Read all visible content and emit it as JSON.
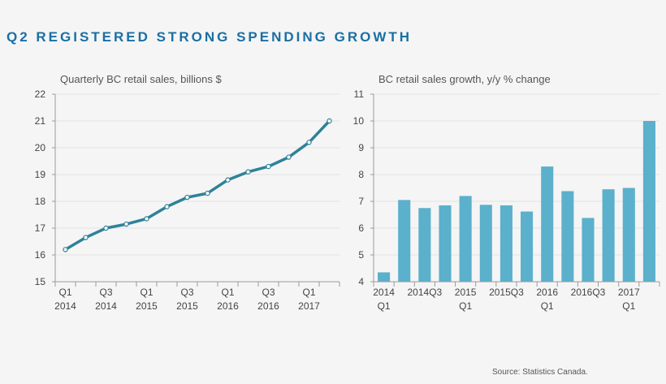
{
  "page": {
    "title": "Q2 REGISTERED STRONG SPENDING GROWTH",
    "source": "Source:  Statistics  Canada."
  },
  "colors": {
    "title": "#1a6fa3",
    "line": "#2e8299",
    "bar": "#5bb0cc",
    "axis": "#9a9a9a",
    "grid": "#e3e3e3"
  },
  "chart_data": [
    {
      "type": "line",
      "title": "Quarterly BC retail sales, billions $",
      "xlabel": "",
      "ylabel": "",
      "ylim": [
        15,
        22
      ],
      "yticks": [
        "15",
        "16",
        "17",
        "18",
        "19",
        "20",
        "21",
        "22"
      ],
      "xtick_labels": [
        [
          "Q1",
          "2014"
        ],
        [
          "Q3",
          "2014"
        ],
        [
          "Q1",
          "2015"
        ],
        [
          "Q3",
          "2015"
        ],
        [
          "Q1",
          "2016"
        ],
        [
          "Q3",
          "2016"
        ],
        [
          "Q1",
          "2017"
        ]
      ],
      "categories": [
        "2014Q1",
        "2014Q2",
        "2014Q3",
        "2014Q4",
        "2015Q1",
        "2015Q2",
        "2015Q3",
        "2015Q4",
        "2016Q1",
        "2016Q2",
        "2016Q3",
        "2016Q4",
        "2017Q1",
        "2017Q2"
      ],
      "series": [
        {
          "name": "Quarterly BC retail sales",
          "values": [
            16.2,
            16.65,
            17.0,
            17.15,
            17.35,
            17.8,
            18.15,
            18.3,
            18.8,
            19.1,
            19.3,
            19.65,
            20.2,
            21.0
          ]
        }
      ]
    },
    {
      "type": "bar",
      "title": "BC retail sales growth, y/y  % change",
      "xlabel": "",
      "ylabel": "",
      "ylim": [
        4,
        11
      ],
      "yticks": [
        "4",
        "5",
        "6",
        "7",
        "8",
        "9",
        "10",
        "11"
      ],
      "xtick_labels": [
        [
          "2014",
          "Q1"
        ],
        [
          "2014Q3",
          ""
        ],
        [
          "2015",
          "Q1"
        ],
        [
          "2015Q3",
          ""
        ],
        [
          "2016",
          "Q1"
        ],
        [
          "2016Q3",
          ""
        ],
        [
          "2017",
          "Q1"
        ]
      ],
      "categories": [
        "2014Q1",
        "2014Q2",
        "2014Q3",
        "2014Q4",
        "2015Q1",
        "2015Q2",
        "2015Q3",
        "2015Q4",
        "2016Q1",
        "2016Q2",
        "2016Q3",
        "2016Q4",
        "2017Q1",
        "2017Q2"
      ],
      "series": [
        {
          "name": "BC retail sales growth",
          "values": [
            4.35,
            7.05,
            6.75,
            6.85,
            7.2,
            6.87,
            6.85,
            6.62,
            8.3,
            7.38,
            6.38,
            7.45,
            7.5,
            10.0
          ]
        }
      ]
    }
  ]
}
